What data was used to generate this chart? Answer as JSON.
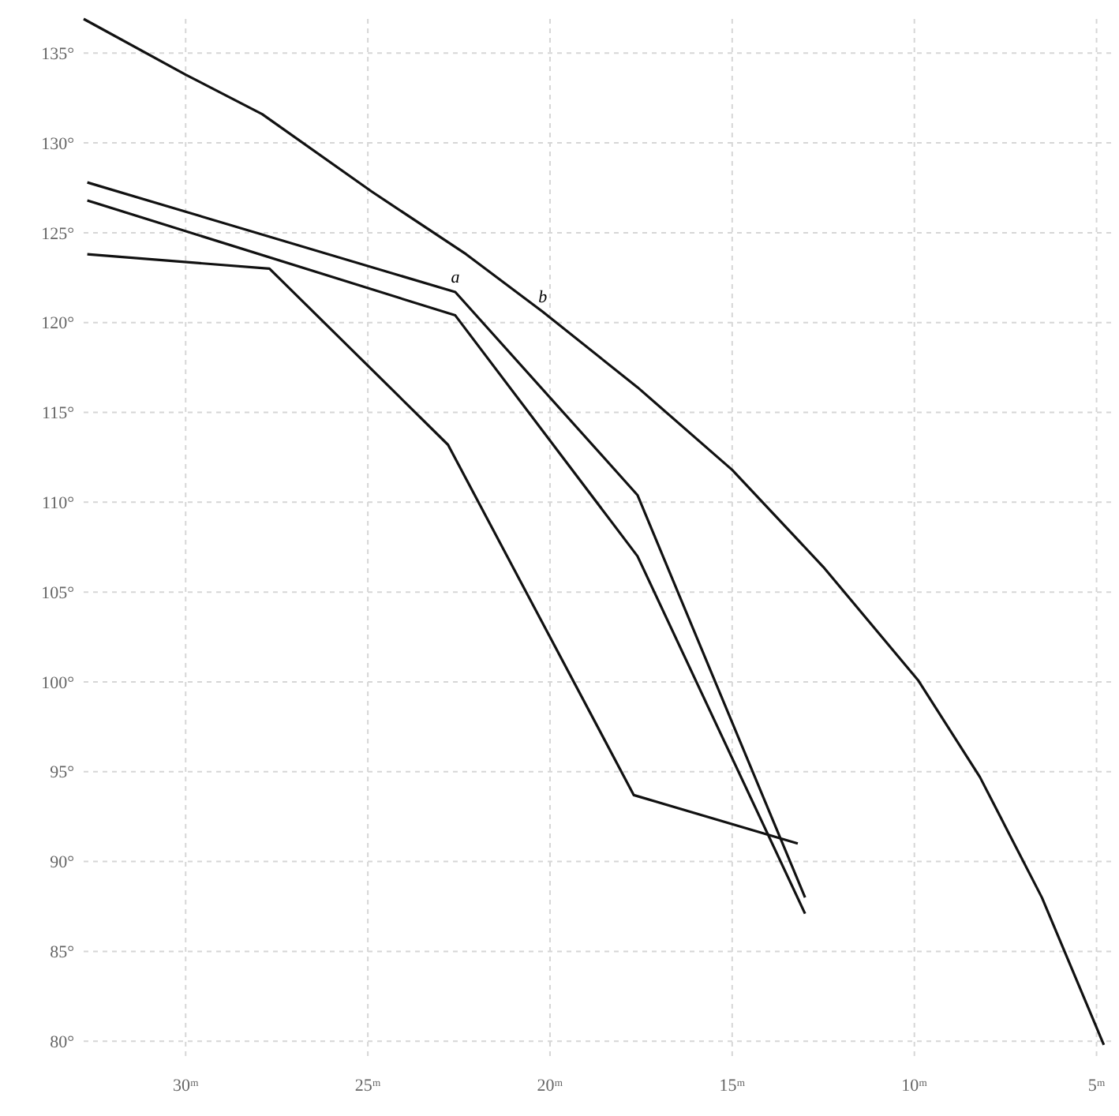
{
  "chart_data": {
    "type": "line",
    "xlim": [
      32.8,
      4.6
    ],
    "ylim": [
      79,
      136.9
    ],
    "xticks": [
      {
        "value": 30,
        "label": "30ᵐ"
      },
      {
        "value": 25,
        "label": "25ᵐ"
      },
      {
        "value": 20,
        "label": "20ᵐ"
      },
      {
        "value": 15,
        "label": "15ᵐ"
      },
      {
        "value": 10,
        "label": "10ᵐ"
      },
      {
        "value": 5,
        "label": "5ᵐ"
      }
    ],
    "yticks": [
      {
        "value": 80,
        "label": "80°"
      },
      {
        "value": 85,
        "label": "85°"
      },
      {
        "value": 90,
        "label": "90°"
      },
      {
        "value": 95,
        "label": "95°"
      },
      {
        "value": 100,
        "label": "100°"
      },
      {
        "value": 105,
        "label": "105°"
      },
      {
        "value": 110,
        "label": "110°"
      },
      {
        "value": 115,
        "label": "115°"
      },
      {
        "value": 120,
        "label": "120°"
      },
      {
        "value": 125,
        "label": "125°"
      },
      {
        "value": 130,
        "label": "130°"
      },
      {
        "value": 135,
        "label": "135°"
      }
    ],
    "grid": true,
    "marker": "none",
    "line_style": "solid",
    "series": [
      {
        "color": "#111111",
        "x": [
          32.8,
          30,
          27.9,
          24.9,
          22.3,
          20.2,
          17.6,
          15,
          12.5,
          9.9,
          8.2,
          6.5,
          4.8
        ],
        "values": [
          136.9,
          133.8,
          131.6,
          127.3,
          123.8,
          120.6,
          116.4,
          111.8,
          106.4,
          100.1,
          94.7,
          88,
          79.8
        ]
      },
      {
        "color": "#111111",
        "x": [
          32.7,
          22.6,
          17.6,
          13
        ],
        "values": [
          127.8,
          121.7,
          110.4,
          88
        ]
      },
      {
        "color": "#111111",
        "x": [
          32.7,
          22.6,
          17.6,
          13
        ],
        "values": [
          126.8,
          120.4,
          107,
          87.1
        ]
      },
      {
        "color": "#111111",
        "x": [
          32.7,
          27.7,
          22.8,
          17.7,
          13.2
        ],
        "values": [
          123.8,
          123,
          113.2,
          93.7,
          91
        ]
      }
    ],
    "annotations": [
      {
        "text": "a",
        "x": 22.6,
        "y": 121.7
      },
      {
        "text": "b",
        "x": 20.2,
        "y": 120.6
      }
    ]
  }
}
